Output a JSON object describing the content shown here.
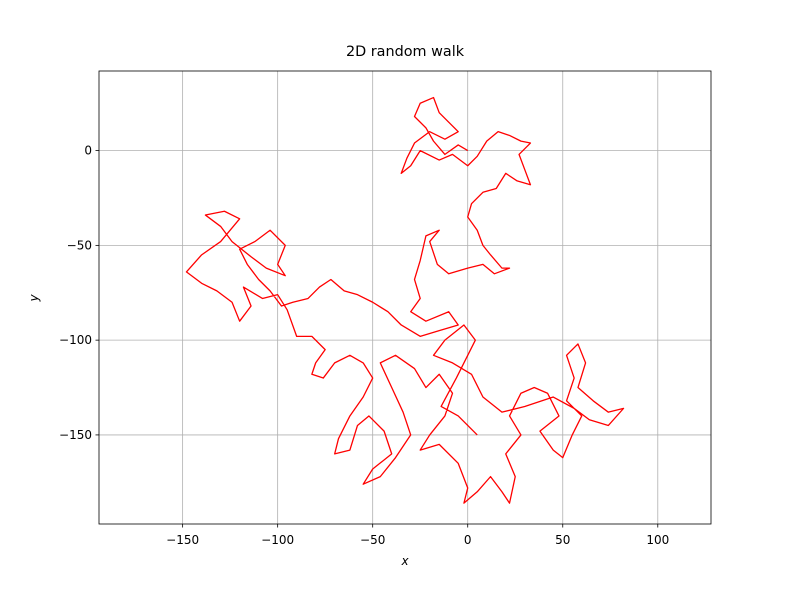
{
  "chart_data": {
    "type": "line",
    "title": "2D random walk",
    "xlabel": "x",
    "ylabel": "y",
    "x": [
      0,
      -5,
      -12,
      -18,
      -22,
      -28,
      -25,
      -18,
      -15,
      -10,
      -5,
      -12,
      -20,
      -28,
      -32,
      -35,
      -30,
      -25,
      -15,
      -8,
      0,
      5,
      10,
      16,
      22,
      28,
      33,
      27,
      30,
      33,
      26,
      20,
      15,
      8,
      2,
      0,
      5,
      8,
      12,
      18,
      22,
      14,
      8,
      0,
      -10,
      -16,
      -20,
      -15,
      -22,
      -25,
      -28,
      -25,
      -30,
      -22,
      -10,
      -5,
      -15,
      -25,
      -35,
      -42,
      -50,
      -58,
      -65,
      -72,
      -78,
      -84,
      -92,
      -98,
      -104,
      -110,
      -116,
      -120,
      -112,
      -104,
      -96,
      -100,
      -96,
      -106,
      -114,
      -124,
      -130,
      -138,
      -128,
      -120,
      -130,
      -140,
      -148,
      -140,
      -132,
      -124,
      -120,
      -114,
      -118,
      -108,
      -100,
      -95,
      -90,
      -82,
      -75,
      -80,
      -82,
      -76,
      -70,
      -62,
      -55,
      -50,
      -55,
      -62,
      -68,
      -70,
      -62,
      -58,
      -52,
      -44,
      -40,
      -50,
      -55,
      -46,
      -38,
      -30,
      -34,
      -40,
      -46,
      -38,
      -28,
      -22,
      -15,
      -8,
      -12,
      -20,
      -25,
      -15,
      -5,
      0,
      -2,
      5,
      12,
      18,
      22,
      25,
      20,
      28,
      22,
      28,
      35,
      42,
      48,
      38,
      45,
      50,
      55,
      60,
      52,
      56,
      52,
      58,
      62,
      58,
      66,
      74,
      82,
      74,
      64,
      56,
      45,
      30,
      18,
      8,
      2,
      -8,
      -18,
      -12,
      -2,
      4,
      -6,
      -14,
      -5,
      5
    ],
    "series": [
      {
        "color": "#ff0000",
        "values": [
          0,
          3,
          -2,
          5,
          12,
          18,
          25,
          28,
          20,
          15,
          10,
          6,
          10,
          4,
          -4,
          -12,
          -8,
          0,
          -5,
          -2,
          -8,
          -3,
          5,
          10,
          8,
          5,
          4,
          -2,
          -10,
          -18,
          -16,
          -12,
          -20,
          -22,
          -28,
          -35,
          -42,
          -50,
          -55,
          -62,
          -62,
          -65,
          -60,
          -62,
          -65,
          -60,
          -48,
          -42,
          -45,
          -58,
          -68,
          -78,
          -85,
          -90,
          -85,
          -92,
          -95,
          -98,
          -92,
          -85,
          -80,
          -76,
          -74,
          -68,
          -72,
          -78,
          -80,
          -82,
          -74,
          -68,
          -60,
          -52,
          -48,
          -42,
          -50,
          -60,
          -66,
          -62,
          -56,
          -48,
          -40,
          -34,
          -32,
          -36,
          -48,
          -55,
          -64,
          -70,
          -74,
          -80,
          -90,
          -82,
          -72,
          -78,
          -76,
          -84,
          -98,
          -98,
          -105,
          -112,
          -118,
          -120,
          -112,
          -108,
          -112,
          -120,
          -130,
          -140,
          -152,
          -160,
          -158,
          -145,
          -140,
          -148,
          -160,
          -168,
          -176,
          -172,
          -162,
          -150,
          -138,
          -125,
          -112,
          -108,
          -115,
          -125,
          -118,
          -128,
          -140,
          -150,
          -158,
          -155,
          -165,
          -178,
          -186,
          -180,
          -172,
          -180,
          -186,
          -172,
          -160,
          -150,
          -140,
          -128,
          -125,
          -128,
          -140,
          -148,
          -158,
          -162,
          -150,
          -140,
          -132,
          -120,
          -108,
          -102,
          -112,
          -125,
          -132,
          -138,
          -136,
          -145,
          -142,
          -136,
          -130,
          -135,
          -138,
          -130,
          -118,
          -112,
          -108,
          -100,
          -92,
          -100,
          -120,
          -135,
          -140,
          -150
        ]
      }
    ],
    "xlim": [
      -194,
      128
    ],
    "ylim": [
      -197,
      42
    ],
    "xticks": [
      {
        "value": -150,
        "label": "−150"
      },
      {
        "value": -100,
        "label": "−100"
      },
      {
        "value": -50,
        "label": "−50"
      },
      0,
      50,
      100
    ],
    "yticks": [
      {
        "value": -150,
        "label": "−150"
      },
      {
        "value": -100,
        "label": "−100"
      },
      {
        "value": -50,
        "label": "−50"
      },
      0
    ],
    "grid": true
  }
}
